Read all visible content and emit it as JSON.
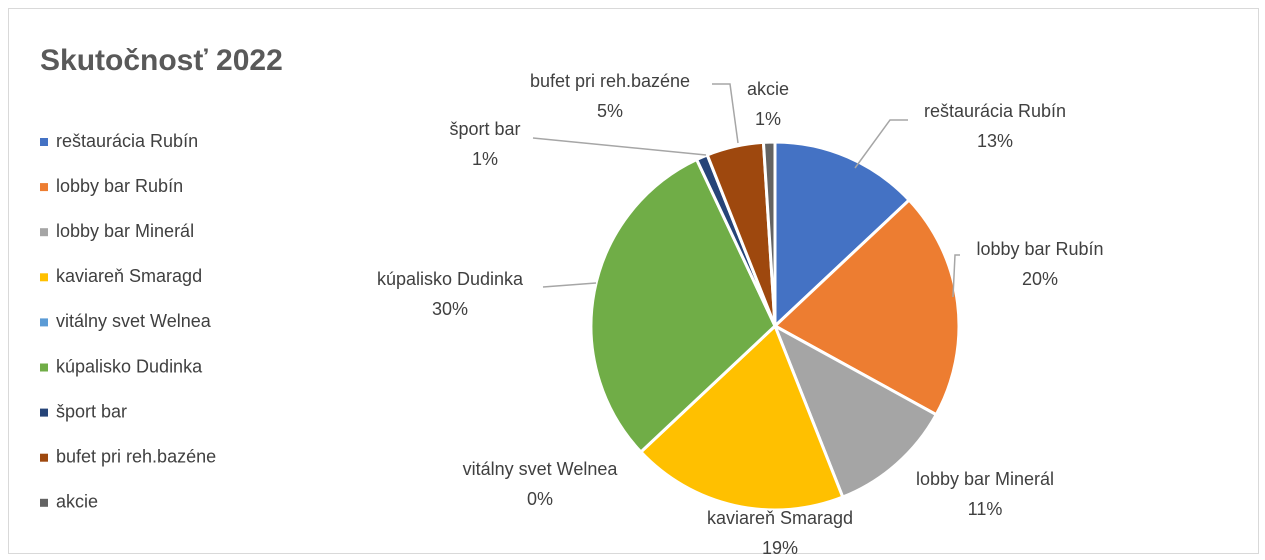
{
  "chart_data": {
    "type": "pie",
    "title": "Skutočnosť 2022",
    "categories": [
      "reštaurácia Rubín",
      "lobby bar Rubín",
      "lobby bar Minerál",
      "kaviareň Smaragd",
      "vitálny svet Welnea",
      "kúpalisko Dudinka",
      "šport bar",
      "bufet pri reh.bazéne",
      "akcie"
    ],
    "values": [
      13,
      20,
      11,
      19,
      0,
      30,
      1,
      5,
      1
    ],
    "value_labels": [
      "13%",
      "20%",
      "11%",
      "19%",
      "0%",
      "30%",
      "1%",
      "5%",
      "1%"
    ],
    "colors": [
      "#4472c4",
      "#ed7d31",
      "#a5a5a5",
      "#ffc000",
      "#5b9bd5",
      "#70ad47",
      "#264478",
      "#9e480e",
      "#636363"
    ],
    "legend": "left"
  }
}
